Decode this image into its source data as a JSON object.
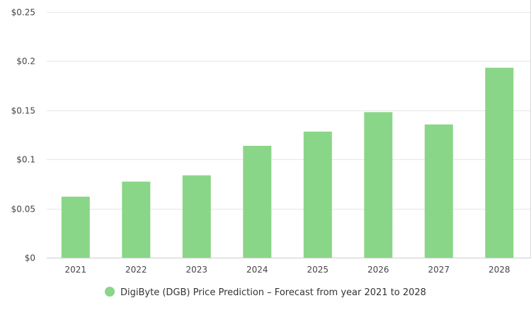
{
  "chart_data": {
    "type": "bar",
    "title": "",
    "xlabel": "",
    "ylabel": "",
    "categories": [
      "2021",
      "2022",
      "2023",
      "2024",
      "2025",
      "2026",
      "2027",
      "2028"
    ],
    "series": [
      {
        "name": "DigiByte (DGB) Price Prediction – Forecast from year 2021 to 2028",
        "values": [
          0.0621,
          0.0774,
          0.0838,
          0.1138,
          0.1283,
          0.1481,
          0.1356,
          0.1933
        ],
        "color": "#8ad688"
      }
    ],
    "ylim": [
      0,
      0.25
    ],
    "yticks": [
      0,
      0.05,
      0.1,
      0.15,
      0.2,
      0.25
    ],
    "ytick_labels": [
      "$0",
      "$0.05",
      "$0.1",
      "$0.15",
      "$0.2",
      "$0.25"
    ],
    "grid": true,
    "legend_position": "bottom-center"
  },
  "legend": {
    "label": "DigiByte (DGB) Price Prediction – Forecast from year 2021 to 2028"
  }
}
